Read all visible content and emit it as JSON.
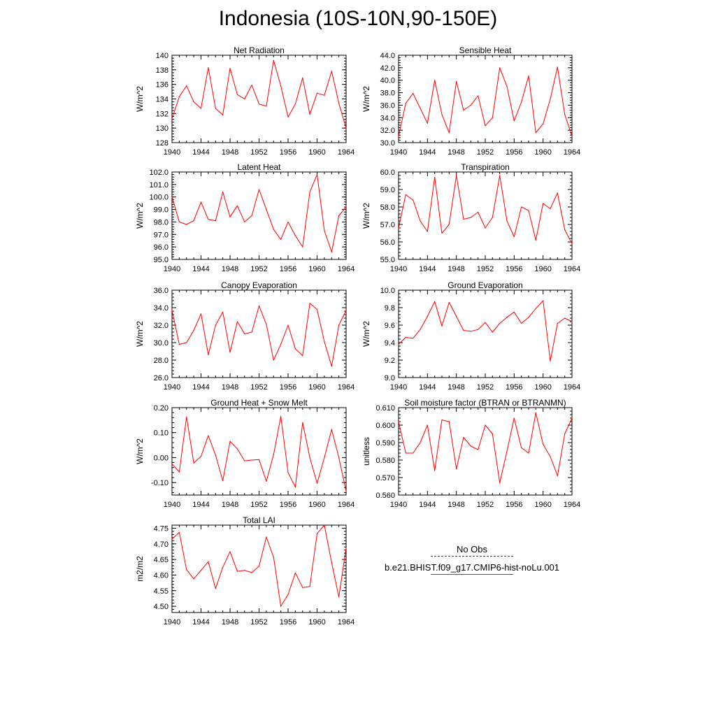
{
  "title": "Indonesia (10S-10N,90-150E)",
  "colors": {
    "model_line": "#ff0000",
    "obs_line": "#3d2f6e",
    "axis": "#000000"
  },
  "legend": {
    "obs_label": "No Obs",
    "model_label": "b.e21.BHIST.f09_g17.CMIP6-hist-noLu.001"
  },
  "chart_data": [
    {
      "type": "line",
      "title": "Net Radiation",
      "ylabel": "W/m^2",
      "xlim": [
        1940,
        1964
      ],
      "ylim": [
        128,
        140
      ],
      "yticks": [
        "128",
        "130",
        "132",
        "134",
        "136",
        "138",
        "140"
      ],
      "xticks": [
        "1940",
        "1944",
        "1948",
        "1952",
        "1956",
        "1960",
        "1964"
      ],
      "series": [
        {
          "x": [
            1940,
            1941,
            1942,
            1943,
            1944,
            1945,
            1946,
            1947,
            1948,
            1949,
            1950,
            1951,
            1952,
            1953,
            1954,
            1955,
            1956,
            1957,
            1958,
            1959,
            1960,
            1961,
            1962,
            1963,
            1964
          ],
          "values": [
            131.3,
            134.3,
            135.8,
            133.6,
            132.7,
            138.3,
            132.7,
            131.8,
            138.2,
            134.6,
            134.0,
            135.9,
            133.3,
            133.0,
            139.3,
            135.8,
            131.5,
            133.3,
            136.9,
            131.9,
            134.8,
            134.5,
            137.8,
            133.4,
            130.0
          ]
        }
      ]
    },
    {
      "type": "line",
      "title": "Sensible Heat",
      "ylabel": "W/m^2",
      "xlim": [
        1940,
        1964
      ],
      "ylim": [
        30,
        44
      ],
      "yticks": [
        "30.0",
        "32.0",
        "34.0",
        "36.0",
        "38.0",
        "40.0",
        "42.0",
        "44.0"
      ],
      "xticks": [
        "1940",
        "1944",
        "1948",
        "1952",
        "1956",
        "1960",
        "1964"
      ],
      "series": [
        {
          "x": [
            1940,
            1941,
            1942,
            1943,
            1944,
            1945,
            1946,
            1947,
            1948,
            1949,
            1950,
            1951,
            1952,
            1953,
            1954,
            1955,
            1956,
            1957,
            1958,
            1959,
            1960,
            1961,
            1962,
            1963,
            1964
          ],
          "values": [
            31.0,
            36.3,
            37.9,
            35.5,
            33.1,
            40.0,
            34.5,
            31.6,
            39.8,
            35.2,
            36.0,
            37.5,
            32.7,
            34.0,
            42.0,
            39.0,
            33.5,
            36.5,
            40.7,
            31.6,
            33.0,
            37.0,
            42.1,
            34.5,
            31.0
          ]
        }
      ]
    },
    {
      "type": "line",
      "title": "Latent Heat",
      "ylabel": "W/m^2",
      "xlim": [
        1940,
        1964
      ],
      "ylim": [
        95,
        102
      ],
      "yticks": [
        "95.0",
        "96.0",
        "97.0",
        "98.0",
        "99.0",
        "100.0",
        "101.0",
        "102.0"
      ],
      "xticks": [
        "1940",
        "1944",
        "1948",
        "1952",
        "1956",
        "1960",
        "1964"
      ],
      "series": [
        {
          "x": [
            1940,
            1941,
            1942,
            1943,
            1944,
            1945,
            1946,
            1947,
            1948,
            1949,
            1950,
            1951,
            1952,
            1953,
            1954,
            1955,
            1956,
            1957,
            1958,
            1959,
            1960,
            1961,
            1962,
            1963,
            1964
          ],
          "values": [
            100.0,
            98.0,
            97.8,
            98.1,
            99.6,
            98.2,
            98.1,
            100.4,
            98.4,
            99.3,
            98.0,
            98.5,
            100.6,
            99.0,
            97.4,
            96.6,
            98.0,
            96.9,
            96.0,
            100.4,
            101.8,
            97.3,
            95.6,
            98.5,
            99.2
          ]
        }
      ]
    },
    {
      "type": "line",
      "title": "Transpiration",
      "ylabel": "W/m^2",
      "xlim": [
        1940,
        1964
      ],
      "ylim": [
        55,
        60
      ],
      "yticks": [
        "55.0",
        "56.0",
        "57.0",
        "58.0",
        "59.0",
        "60.0"
      ],
      "xticks": [
        "1940",
        "1944",
        "1948",
        "1952",
        "1956",
        "1960",
        "1964"
      ],
      "series": [
        {
          "x": [
            1940,
            1941,
            1942,
            1943,
            1944,
            1945,
            1946,
            1947,
            1948,
            1949,
            1950,
            1951,
            1952,
            1953,
            1954,
            1955,
            1956,
            1957,
            1958,
            1959,
            1960,
            1961,
            1962,
            1963,
            1964
          ],
          "values": [
            56.8,
            58.7,
            58.4,
            57.2,
            56.6,
            59.7,
            56.5,
            57.0,
            59.8,
            57.3,
            57.4,
            57.7,
            56.8,
            57.4,
            59.8,
            57.2,
            56.3,
            58.0,
            57.8,
            56.1,
            58.2,
            57.9,
            58.8,
            56.7,
            55.9
          ]
        }
      ]
    },
    {
      "type": "line",
      "title": "Canopy Evaporation",
      "ylabel": "W/m^2",
      "xlim": [
        1940,
        1964
      ],
      "ylim": [
        26,
        36
      ],
      "yticks": [
        "26.0",
        "28.0",
        "30.0",
        "32.0",
        "34.0",
        "36.0"
      ],
      "xticks": [
        "1940",
        "1944",
        "1948",
        "1952",
        "1956",
        "1960",
        "1964"
      ],
      "series": [
        {
          "x": [
            1940,
            1941,
            1942,
            1943,
            1944,
            1945,
            1946,
            1947,
            1948,
            1949,
            1950,
            1951,
            1952,
            1953,
            1954,
            1955,
            1956,
            1957,
            1958,
            1959,
            1960,
            1961,
            1962,
            1963,
            1964
          ],
          "values": [
            33.7,
            29.8,
            30.0,
            31.4,
            33.3,
            28.6,
            32.0,
            33.5,
            28.9,
            32.4,
            31.0,
            31.2,
            34.2,
            32.1,
            28.0,
            29.8,
            32.0,
            29.3,
            28.5,
            34.5,
            33.8,
            30.1,
            27.3,
            32.0,
            33.7
          ]
        }
      ]
    },
    {
      "type": "line",
      "title": "Ground Evaporation",
      "ylabel": "W/m^2",
      "xlim": [
        1940,
        1964
      ],
      "ylim": [
        9.0,
        10.0
      ],
      "yticks": [
        "9.0",
        "9.2",
        "9.4",
        "9.6",
        "9.8",
        "10.0"
      ],
      "xticks": [
        "1940",
        "1944",
        "1948",
        "1952",
        "1956",
        "1960",
        "1964"
      ],
      "series": [
        {
          "x": [
            1940,
            1941,
            1942,
            1943,
            1944,
            1945,
            1946,
            1947,
            1948,
            1949,
            1950,
            1951,
            1952,
            1953,
            1954,
            1955,
            1956,
            1957,
            1958,
            1959,
            1960,
            1961,
            1962,
            1963,
            1964
          ],
          "values": [
            9.38,
            9.46,
            9.45,
            9.55,
            9.7,
            9.87,
            9.59,
            9.86,
            9.7,
            9.54,
            9.53,
            9.55,
            9.63,
            9.52,
            9.62,
            9.69,
            9.75,
            9.62,
            9.69,
            9.79,
            9.88,
            9.19,
            9.62,
            9.68,
            9.64
          ]
        }
      ]
    },
    {
      "type": "line",
      "title": "Ground Heat + Snow Melt",
      "ylabel": "W/m^2",
      "xlim": [
        1940,
        1964
      ],
      "ylim": [
        -0.15,
        0.2
      ],
      "yticks": [
        "-0.10",
        "0.00",
        "0.10",
        "0.20"
      ],
      "ytickvalues": [
        -0.1,
        0.0,
        0.1,
        0.2
      ],
      "xticks": [
        "1940",
        "1944",
        "1948",
        "1952",
        "1956",
        "1960",
        "1964"
      ],
      "series": [
        {
          "x": [
            1940,
            1941,
            1942,
            1943,
            1944,
            1945,
            1946,
            1947,
            1948,
            1949,
            1950,
            1951,
            1952,
            1953,
            1954,
            1955,
            1956,
            1957,
            1958,
            1959,
            1960,
            1961,
            1962,
            1963,
            1964
          ],
          "values": [
            -0.025,
            -0.058,
            0.163,
            -0.022,
            0.005,
            0.088,
            0.01,
            -0.093,
            0.065,
            0.035,
            -0.013,
            -0.01,
            -0.008,
            -0.095,
            0.012,
            0.165,
            -0.06,
            -0.118,
            0.14,
            0.0,
            -0.103,
            0.0,
            0.113,
            0.0,
            -0.135
          ]
        }
      ]
    },
    {
      "type": "line",
      "title": "Soil moisture factor (BTRAN or BTRANMN)",
      "ylabel": "unitless",
      "xlim": [
        1940,
        1964
      ],
      "ylim": [
        0.56,
        0.61
      ],
      "yticks": [
        "0.560",
        "0.570",
        "0.580",
        "0.590",
        "0.600",
        "0.610"
      ],
      "xticks": [
        "1940",
        "1944",
        "1948",
        "1952",
        "1956",
        "1960",
        "1964"
      ],
      "series": [
        {
          "x": [
            1940,
            1941,
            1942,
            1943,
            1944,
            1945,
            1946,
            1947,
            1948,
            1949,
            1950,
            1951,
            1952,
            1953,
            1954,
            1955,
            1956,
            1957,
            1958,
            1959,
            1960,
            1961,
            1962,
            1963,
            1964
          ],
          "values": [
            0.602,
            0.584,
            0.584,
            0.59,
            0.6,
            0.574,
            0.603,
            0.602,
            0.575,
            0.593,
            0.588,
            0.586,
            0.6,
            0.595,
            0.567,
            0.585,
            0.604,
            0.587,
            0.584,
            0.607,
            0.589,
            0.582,
            0.571,
            0.595,
            0.604
          ]
        }
      ]
    },
    {
      "type": "line",
      "title": "Total LAI",
      "ylabel": "m2/m2",
      "xlim": [
        1940,
        1964
      ],
      "ylim": [
        4.48,
        4.76
      ],
      "yticks": [
        "4.50",
        "4.55",
        "4.60",
        "4.65",
        "4.70",
        "4.75"
      ],
      "ytickvalues": [
        4.5,
        4.55,
        4.6,
        4.65,
        4.7,
        4.75
      ],
      "xticks": [
        "1940",
        "1944",
        "1948",
        "1952",
        "1956",
        "1960",
        "1964"
      ],
      "series": [
        {
          "x": [
            1940,
            1941,
            1942,
            1943,
            1944,
            1945,
            1946,
            1947,
            1948,
            1949,
            1950,
            1951,
            1952,
            1953,
            1954,
            1955,
            1956,
            1957,
            1958,
            1959,
            1960,
            1961,
            1962,
            1963,
            1964
          ],
          "values": [
            4.715,
            4.737,
            4.617,
            4.588,
            4.615,
            4.643,
            4.557,
            4.625,
            4.675,
            4.612,
            4.615,
            4.608,
            4.628,
            4.722,
            4.657,
            4.5,
            4.538,
            4.607,
            4.56,
            4.563,
            4.733,
            4.76,
            4.64,
            4.53,
            4.687
          ]
        }
      ]
    }
  ]
}
